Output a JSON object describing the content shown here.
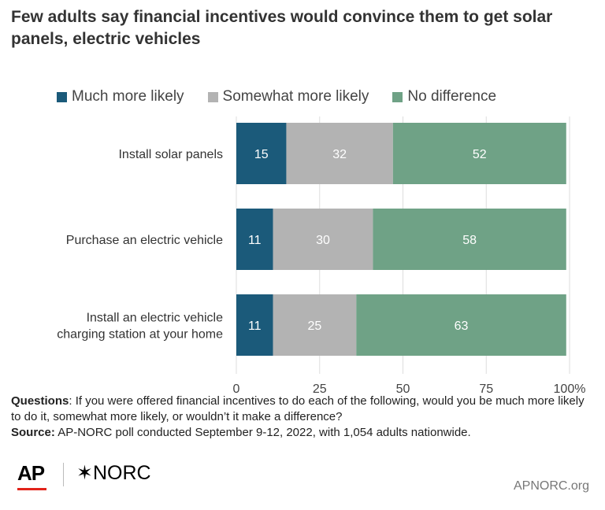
{
  "title": "Few adults say financial incentives would convince them to get solar panels, electric vehicles",
  "legend": [
    {
      "label": "Much more likely",
      "color": "#1b5a7a"
    },
    {
      "label": "Somewhat more likely",
      "color": "#b3b3b3"
    },
    {
      "label": "No difference",
      "color": "#6fa286"
    }
  ],
  "chart_data": {
    "type": "bar",
    "orientation": "horizontal",
    "stacked": true,
    "categories": [
      "Install solar panels",
      "Purchase an electric vehicle",
      "Install an electric vehicle charging station at your home"
    ],
    "series": [
      {
        "name": "Much more likely",
        "values": [
          15,
          11,
          11
        ],
        "color": "#1b5a7a",
        "label_color": "#ffffff"
      },
      {
        "name": "Somewhat more likely",
        "values": [
          32,
          30,
          25
        ],
        "color": "#b3b3b3",
        "label_color": "#ffffff"
      },
      {
        "name": "No difference",
        "values": [
          52,
          58,
          63
        ],
        "color": "#6fa286",
        "label_color": "#ffffff"
      }
    ],
    "xlim": [
      0,
      100
    ],
    "xticks": [
      "0",
      "25",
      "50",
      "75",
      "100%"
    ],
    "grid": true
  },
  "notes": {
    "questions_label": "Questions",
    "questions_text": ": If you were offered financial incentives to do each of the following, would you be much more likely to do it, somewhat more likely, or wouldn’t it make a difference?",
    "source_label": "Source:",
    "source_text": " AP-NORC poll conducted September 9-12, 2022, with 1,054 adults nationwide."
  },
  "footer": {
    "ap_logo": "AP",
    "norc_logo": "✶NORC",
    "site": "APNORC.org"
  }
}
